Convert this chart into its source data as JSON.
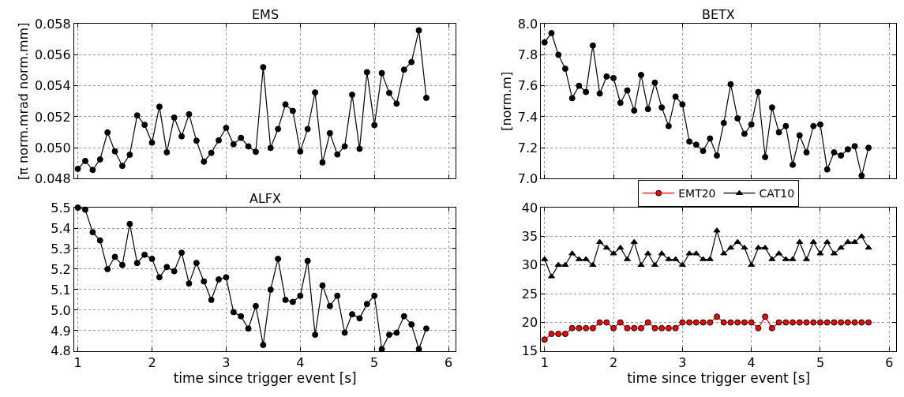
{
  "chart_data": [
    {
      "type": "line",
      "title": "EMS",
      "ylabel": "[π norm.mrad norm.mm]",
      "x": [
        1.0,
        1.1,
        1.2,
        1.3,
        1.4,
        1.5,
        1.6,
        1.7,
        1.8,
        1.9,
        2.0,
        2.1,
        2.2,
        2.3,
        2.4,
        2.5,
        2.6,
        2.7,
        2.8,
        2.9,
        3.0,
        3.1,
        3.2,
        3.3,
        3.4,
        3.5,
        3.6,
        3.7,
        3.8,
        3.9,
        4.0,
        4.1,
        4.2,
        4.3,
        4.4,
        4.5,
        4.6,
        4.7,
        4.8,
        4.9,
        5.0,
        5.1,
        5.2,
        5.3,
        5.4,
        5.5,
        5.6,
        5.7
      ],
      "series": [
        {
          "color": "#000000",
          "marker": "circle",
          "values": [
            0.04864,
            0.04915,
            0.04857,
            0.04925,
            0.05099,
            0.04977,
            0.04883,
            0.04955,
            0.05209,
            0.05148,
            0.05033,
            0.05265,
            0.04971,
            0.05195,
            0.05074,
            0.05216,
            0.05045,
            0.0491,
            0.04967,
            0.05048,
            0.05128,
            0.05023,
            0.05064,
            0.05009,
            0.04974,
            0.0552,
            0.04999,
            0.05121,
            0.0528,
            0.05238,
            0.04976,
            0.05121,
            0.05357,
            0.04905,
            0.05094,
            0.04957,
            0.05009,
            0.05342,
            0.04993,
            0.05488,
            0.05146,
            0.05482,
            0.05354,
            0.05285,
            0.05504,
            0.05553,
            0.05758,
            0.05322
          ]
        }
      ],
      "xlim": [
        0.95,
        6.1
      ],
      "ylim": [
        0.048,
        0.058
      ],
      "yticks": [
        0.048,
        {
          "value": 0.05,
          "label": "0.050"
        },
        0.052,
        0.054,
        0.056,
        0.058
      ],
      "xticks": [
        1,
        2,
        3,
        4,
        5,
        6
      ],
      "tick_labels": "y",
      "grid": true,
      "line_style": "solid"
    },
    {
      "type": "line",
      "title": "BETX",
      "ylabel": "[norm.m]",
      "x": [
        1.0,
        1.1,
        1.2,
        1.3,
        1.4,
        1.5,
        1.6,
        1.7,
        1.8,
        1.9,
        2.0,
        2.1,
        2.2,
        2.3,
        2.4,
        2.5,
        2.6,
        2.7,
        2.8,
        2.9,
        3.0,
        3.1,
        3.2,
        3.3,
        3.4,
        3.5,
        3.6,
        3.7,
        3.8,
        3.9,
        4.0,
        4.1,
        4.2,
        4.3,
        4.4,
        4.5,
        4.6,
        4.7,
        4.8,
        4.9,
        5.0,
        5.1,
        5.2,
        5.3,
        5.4,
        5.5,
        5.6,
        5.7
      ],
      "series": [
        {
          "color": "#000000",
          "marker": "circle",
          "values": [
            7.88,
            7.94,
            7.8,
            7.71,
            7.52,
            7.6,
            7.56,
            7.86,
            7.55,
            7.66,
            7.65,
            7.49,
            7.57,
            7.44,
            7.67,
            7.45,
            7.62,
            7.46,
            7.34,
            7.53,
            7.48,
            7.24,
            7.22,
            7.18,
            7.26,
            7.15,
            7.36,
            7.61,
            7.39,
            7.29,
            7.35,
            7.56,
            7.14,
            7.46,
            7.3,
            7.34,
            7.09,
            7.28,
            7.17,
            7.34,
            7.35,
            7.06,
            7.17,
            7.15,
            7.19,
            7.21,
            7.02,
            7.2
          ]
        }
      ],
      "xlim": [
        0.95,
        6.1
      ],
      "ylim": [
        7.0,
        8.0
      ],
      "yticks": [
        {
          "value": 7.0,
          "label": "7.0"
        },
        {
          "value": 7.2,
          "label": "7.2"
        },
        {
          "value": 7.4,
          "label": "7.4"
        },
        {
          "value": 7.6,
          "label": "7.6"
        },
        {
          "value": 7.8,
          "label": "7.8"
        },
        {
          "value": 8.0,
          "label": "8.0"
        }
      ],
      "xticks": [
        1,
        2,
        3,
        4,
        5,
        6
      ],
      "tick_labels": "y",
      "grid": true,
      "line_style": "solid"
    },
    {
      "type": "line",
      "title": "ALFX",
      "xlabel": "time since trigger event [s]",
      "x": [
        1.0,
        1.1,
        1.2,
        1.3,
        1.4,
        1.5,
        1.6,
        1.7,
        1.8,
        1.9,
        2.0,
        2.1,
        2.2,
        2.3,
        2.4,
        2.5,
        2.6,
        2.7,
        2.8,
        2.9,
        3.0,
        3.1,
        3.2,
        3.3,
        3.4,
        3.5,
        3.6,
        3.7,
        3.8,
        3.9,
        4.0,
        4.1,
        4.2,
        4.3,
        4.4,
        4.5,
        4.6,
        4.7,
        4.8,
        4.9,
        5.0,
        5.1,
        5.2,
        5.3,
        5.4,
        5.5,
        5.6,
        5.7
      ],
      "series": [
        {
          "color": "#000000",
          "marker": "circle",
          "values": [
            5.5,
            5.49,
            5.38,
            5.34,
            5.2,
            5.26,
            5.22,
            5.42,
            5.23,
            5.27,
            5.25,
            5.16,
            5.21,
            5.19,
            5.28,
            5.13,
            5.23,
            5.14,
            5.05,
            5.15,
            5.16,
            4.99,
            4.97,
            4.91,
            5.02,
            4.83,
            5.1,
            5.25,
            5.05,
            5.04,
            5.07,
            5.24,
            4.88,
            5.12,
            5.02,
            5.07,
            4.89,
            4.98,
            4.96,
            5.03,
            5.07,
            4.81,
            4.88,
            4.89,
            4.97,
            4.93,
            4.81,
            4.91
          ]
        }
      ],
      "xlim": [
        0.95,
        6.1
      ],
      "ylim": [
        4.8,
        5.5
      ],
      "yticks": [
        {
          "value": 4.8,
          "label": "4.8"
        },
        {
          "value": 4.9,
          "label": "4.9"
        },
        {
          "value": 5.0,
          "label": "5.0"
        },
        {
          "value": 5.1,
          "label": "5.1"
        },
        {
          "value": 5.2,
          "label": "5.2"
        },
        {
          "value": 5.3,
          "label": "5.3"
        },
        {
          "value": 5.4,
          "label": "5.4"
        },
        {
          "value": 5.5,
          "label": "5.5"
        }
      ],
      "xticks": [
        1,
        2,
        3,
        4,
        5,
        6
      ],
      "grid": true,
      "line_style": "solid"
    },
    {
      "type": "line",
      "xlabel": "time since trigger event [s]",
      "x": [
        1.0,
        1.1,
        1.2,
        1.3,
        1.4,
        1.5,
        1.6,
        1.7,
        1.8,
        1.9,
        2.0,
        2.1,
        2.2,
        2.3,
        2.4,
        2.5,
        2.6,
        2.7,
        2.8,
        2.9,
        3.0,
        3.1,
        3.2,
        3.3,
        3.4,
        3.5,
        3.6,
        3.7,
        3.8,
        3.9,
        4.0,
        4.1,
        4.2,
        4.3,
        4.4,
        4.5,
        4.6,
        4.7,
        4.8,
        4.9,
        5.0,
        5.1,
        5.2,
        5.3,
        5.4,
        5.5,
        5.6,
        5.7
      ],
      "series": [
        {
          "name": "EMT20",
          "color": "#ff0000",
          "marker": "circle",
          "values": [
            17,
            18,
            18,
            18,
            19,
            19,
            19,
            19,
            20,
            20,
            19,
            20,
            19,
            19,
            19,
            20,
            19,
            19,
            19,
            19,
            20,
            20,
            20,
            20,
            20,
            21,
            20,
            20,
            20,
            20,
            20,
            19,
            21,
            19,
            20,
            20,
            20,
            20,
            20,
            20,
            20,
            20,
            20,
            20,
            20,
            20,
            20,
            20
          ]
        },
        {
          "name": "CAT10",
          "color": "#000000",
          "marker": "triangle",
          "values": [
            31,
            28,
            30,
            30,
            32,
            31,
            31,
            30,
            34,
            33,
            32,
            33,
            31,
            34,
            30,
            32,
            30,
            32,
            31,
            31,
            30,
            32,
            32,
            31,
            31,
            36,
            32,
            33,
            34,
            33,
            30,
            33,
            33,
            31,
            32,
            31,
            31,
            34,
            31,
            34,
            32,
            34,
            32,
            33,
            34,
            34,
            35,
            33
          ]
        }
      ],
      "xlim": [
        0.95,
        6.1
      ],
      "ylim": [
        15,
        40
      ],
      "yticks": [
        15,
        20,
        25,
        30,
        35,
        40
      ],
      "xticks": [
        1,
        2,
        3,
        4,
        5,
        6
      ],
      "grid": true,
      "legend": "top",
      "line_style": "solid"
    }
  ]
}
